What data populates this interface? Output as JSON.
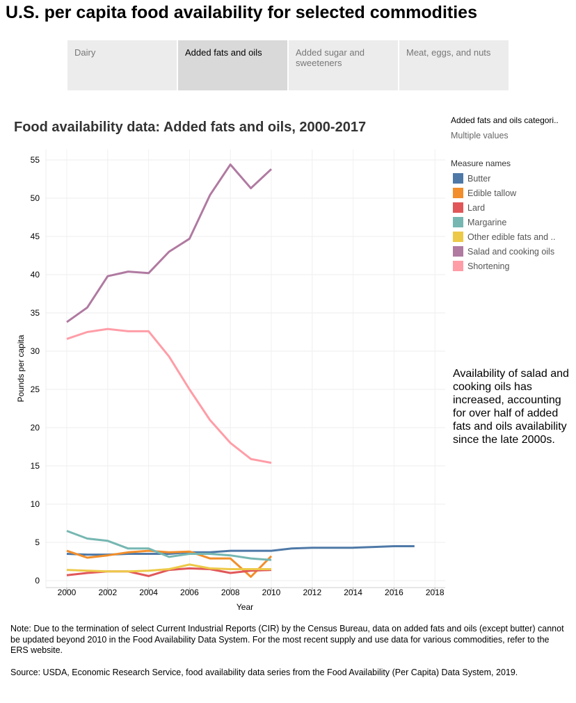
{
  "title": "U.S. per capita food availability for selected commodities",
  "tabs": [
    {
      "label": "Dairy"
    },
    {
      "label": "Added fats and oils",
      "active": true
    },
    {
      "label": "Added sugar and sweeteners"
    },
    {
      "label": "Meat, eggs, and nuts"
    }
  ],
  "filter": {
    "label": "Added fats and oils categori..",
    "value": "Multiple values"
  },
  "legend_title": "Measure names",
  "annotation": "Availability of salad and cooking oils has increased, accounting for over half of added fats and oils availability since the late 2000s.",
  "note": "Note: Due to the termination of select Current Industrial Reports (CIR) by the Census Bureau, data on added fats and oils (except butter) cannot be updated beyond 2010 in the Food Availability Data System. For the most recent supply and use data for various commodities, refer to the ERS website.",
  "source": "Source: USDA, Economic Research Service, food availability data series from the Food Availability (Per Capita) Data System, 2019.",
  "chart_data": {
    "type": "line",
    "title": "Food availability data: Added fats and oils, 2000-2017",
    "xlabel": "Year",
    "ylabel": "Pounds per capita",
    "xlim": [
      1999,
      2018.5
    ],
    "ylim": [
      0,
      56
    ],
    "xticks": [
      2000,
      2002,
      2004,
      2006,
      2008,
      2010,
      2012,
      2014,
      2016,
      2018
    ],
    "yticks": [
      0,
      5,
      10,
      15,
      20,
      25,
      30,
      35,
      40,
      45,
      50,
      55
    ],
    "grid": true,
    "legend_position": "right",
    "series": [
      {
        "name": "Butter",
        "color": "#4e79a7",
        "x": [
          2000,
          2001,
          2002,
          2003,
          2004,
          2005,
          2006,
          2007,
          2008,
          2009,
          2010,
          2011,
          2012,
          2013,
          2014,
          2015,
          2016,
          2017
        ],
        "values": [
          3.5,
          3.4,
          3.4,
          3.5,
          3.5,
          3.5,
          3.7,
          3.7,
          3.9,
          3.9,
          3.9,
          4.2,
          4.3,
          4.3,
          4.3,
          4.4,
          4.5,
          4.5
        ]
      },
      {
        "name": "Edible tallow",
        "color": "#f28e2b",
        "x": [
          2000,
          2001,
          2002,
          2003,
          2004,
          2005,
          2006,
          2007,
          2008,
          2009,
          2010
        ],
        "values": [
          3.9,
          3.0,
          3.3,
          3.7,
          3.9,
          3.7,
          3.8,
          2.9,
          2.9,
          0.5,
          3.2
        ]
      },
      {
        "name": "Lard",
        "color": "#e15759",
        "x": [
          2000,
          2001,
          2002,
          2003,
          2004,
          2005,
          2006,
          2007,
          2008,
          2009,
          2010
        ],
        "values": [
          0.7,
          1.0,
          1.2,
          1.2,
          0.6,
          1.4,
          1.6,
          1.5,
          1.0,
          1.3,
          1.4
        ]
      },
      {
        "name": "Margarine",
        "color": "#76b7b2",
        "x": [
          2000,
          2001,
          2002,
          2003,
          2004,
          2005,
          2006,
          2007,
          2008,
          2009,
          2010
        ],
        "values": [
          6.5,
          5.5,
          5.2,
          4.2,
          4.2,
          3.1,
          3.5,
          3.5,
          3.3,
          2.9,
          2.7
        ]
      },
      {
        "name": "Other edible fats and ..",
        "color": "#edc948",
        "x": [
          2000,
          2001,
          2002,
          2003,
          2004,
          2005,
          2006,
          2007,
          2008,
          2009,
          2010
        ],
        "values": [
          1.4,
          1.3,
          1.2,
          1.2,
          1.3,
          1.5,
          2.1,
          1.6,
          1.5,
          1.5,
          1.5
        ]
      },
      {
        "name": "Salad and cooking oils",
        "color": "#b07aa1",
        "x": [
          2000,
          2001,
          2002,
          2003,
          2004,
          2005,
          2006,
          2007,
          2008,
          2009,
          2010
        ],
        "values": [
          33.8,
          35.7,
          39.8,
          40.4,
          40.2,
          43.0,
          44.7,
          50.4,
          54.4,
          51.3,
          53.8
        ]
      },
      {
        "name": "Shortening",
        "color": "#ff9da7",
        "x": [
          2000,
          2001,
          2002,
          2003,
          2004,
          2005,
          2006,
          2007,
          2008,
          2009,
          2010
        ],
        "values": [
          31.6,
          32.5,
          32.9,
          32.6,
          32.6,
          29.3,
          25.0,
          21.0,
          18.0,
          15.9,
          15.4
        ]
      }
    ]
  }
}
